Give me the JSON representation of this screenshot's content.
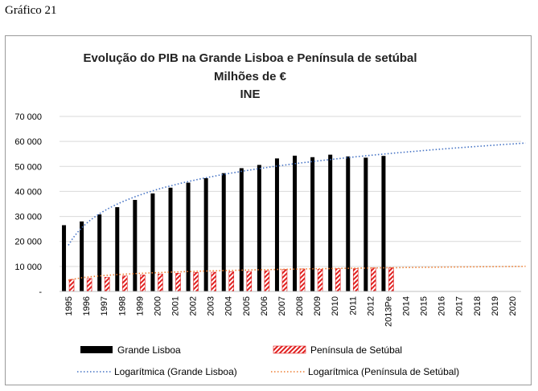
{
  "caption": "Gráfico 21",
  "chart_data": {
    "type": "bar",
    "title": "Evolução do PIB na Grande Lisboa e Península de setúbal",
    "subtitle": "Milhões de €",
    "source": "INE",
    "categories": [
      "1995",
      "1996",
      "1997",
      "1998",
      "1999",
      "2000",
      "2001",
      "2002",
      "2003",
      "2004",
      "2005",
      "2006",
      "2007",
      "2008",
      "2009",
      "2010",
      "2011",
      "2012",
      "2013Pe",
      "2014",
      "2015",
      "2016",
      "2017",
      "2018",
      "2019",
      "2020"
    ],
    "ylim": [
      0,
      70000
    ],
    "yticks": [
      0,
      10000,
      20000,
      30000,
      40000,
      50000,
      60000,
      70000
    ],
    "ytick_labels": [
      "-",
      "10 000",
      "20 000",
      "30 000",
      "40 000",
      "50 000",
      "60 000",
      "70 000"
    ],
    "grid": true,
    "legend_position": "bottom",
    "series": [
      {
        "name": "Grande Lisboa",
        "color": "#000000",
        "values": [
          26500,
          28000,
          30800,
          33700,
          36600,
          39200,
          41500,
          43500,
          45300,
          47300,
          49300,
          50600,
          53200,
          54300,
          53700,
          54700,
          54000,
          53500,
          54200,
          null,
          null,
          null,
          null,
          null,
          null,
          null
        ]
      },
      {
        "name": "Península de Setúbal",
        "color": "#e02020",
        "values": [
          4800,
          5200,
          5700,
          6200,
          6600,
          7000,
          7300,
          7600,
          7700,
          7900,
          8000,
          8300,
          8800,
          9000,
          8900,
          9100,
          9100,
          9400,
          9500,
          null,
          null,
          null,
          null,
          null,
          null,
          null
        ]
      }
    ],
    "trendlines": [
      {
        "name": "Logarítmica (Grande Lisboa)",
        "type": "logarithmic",
        "color": "#4472c4",
        "start": 18500,
        "end": 59000
      },
      {
        "name": "Logarítmica (Península de Setúbal)",
        "type": "logarithmic",
        "color": "#ed7d31",
        "start": 4500,
        "end": 10000
      }
    ]
  }
}
